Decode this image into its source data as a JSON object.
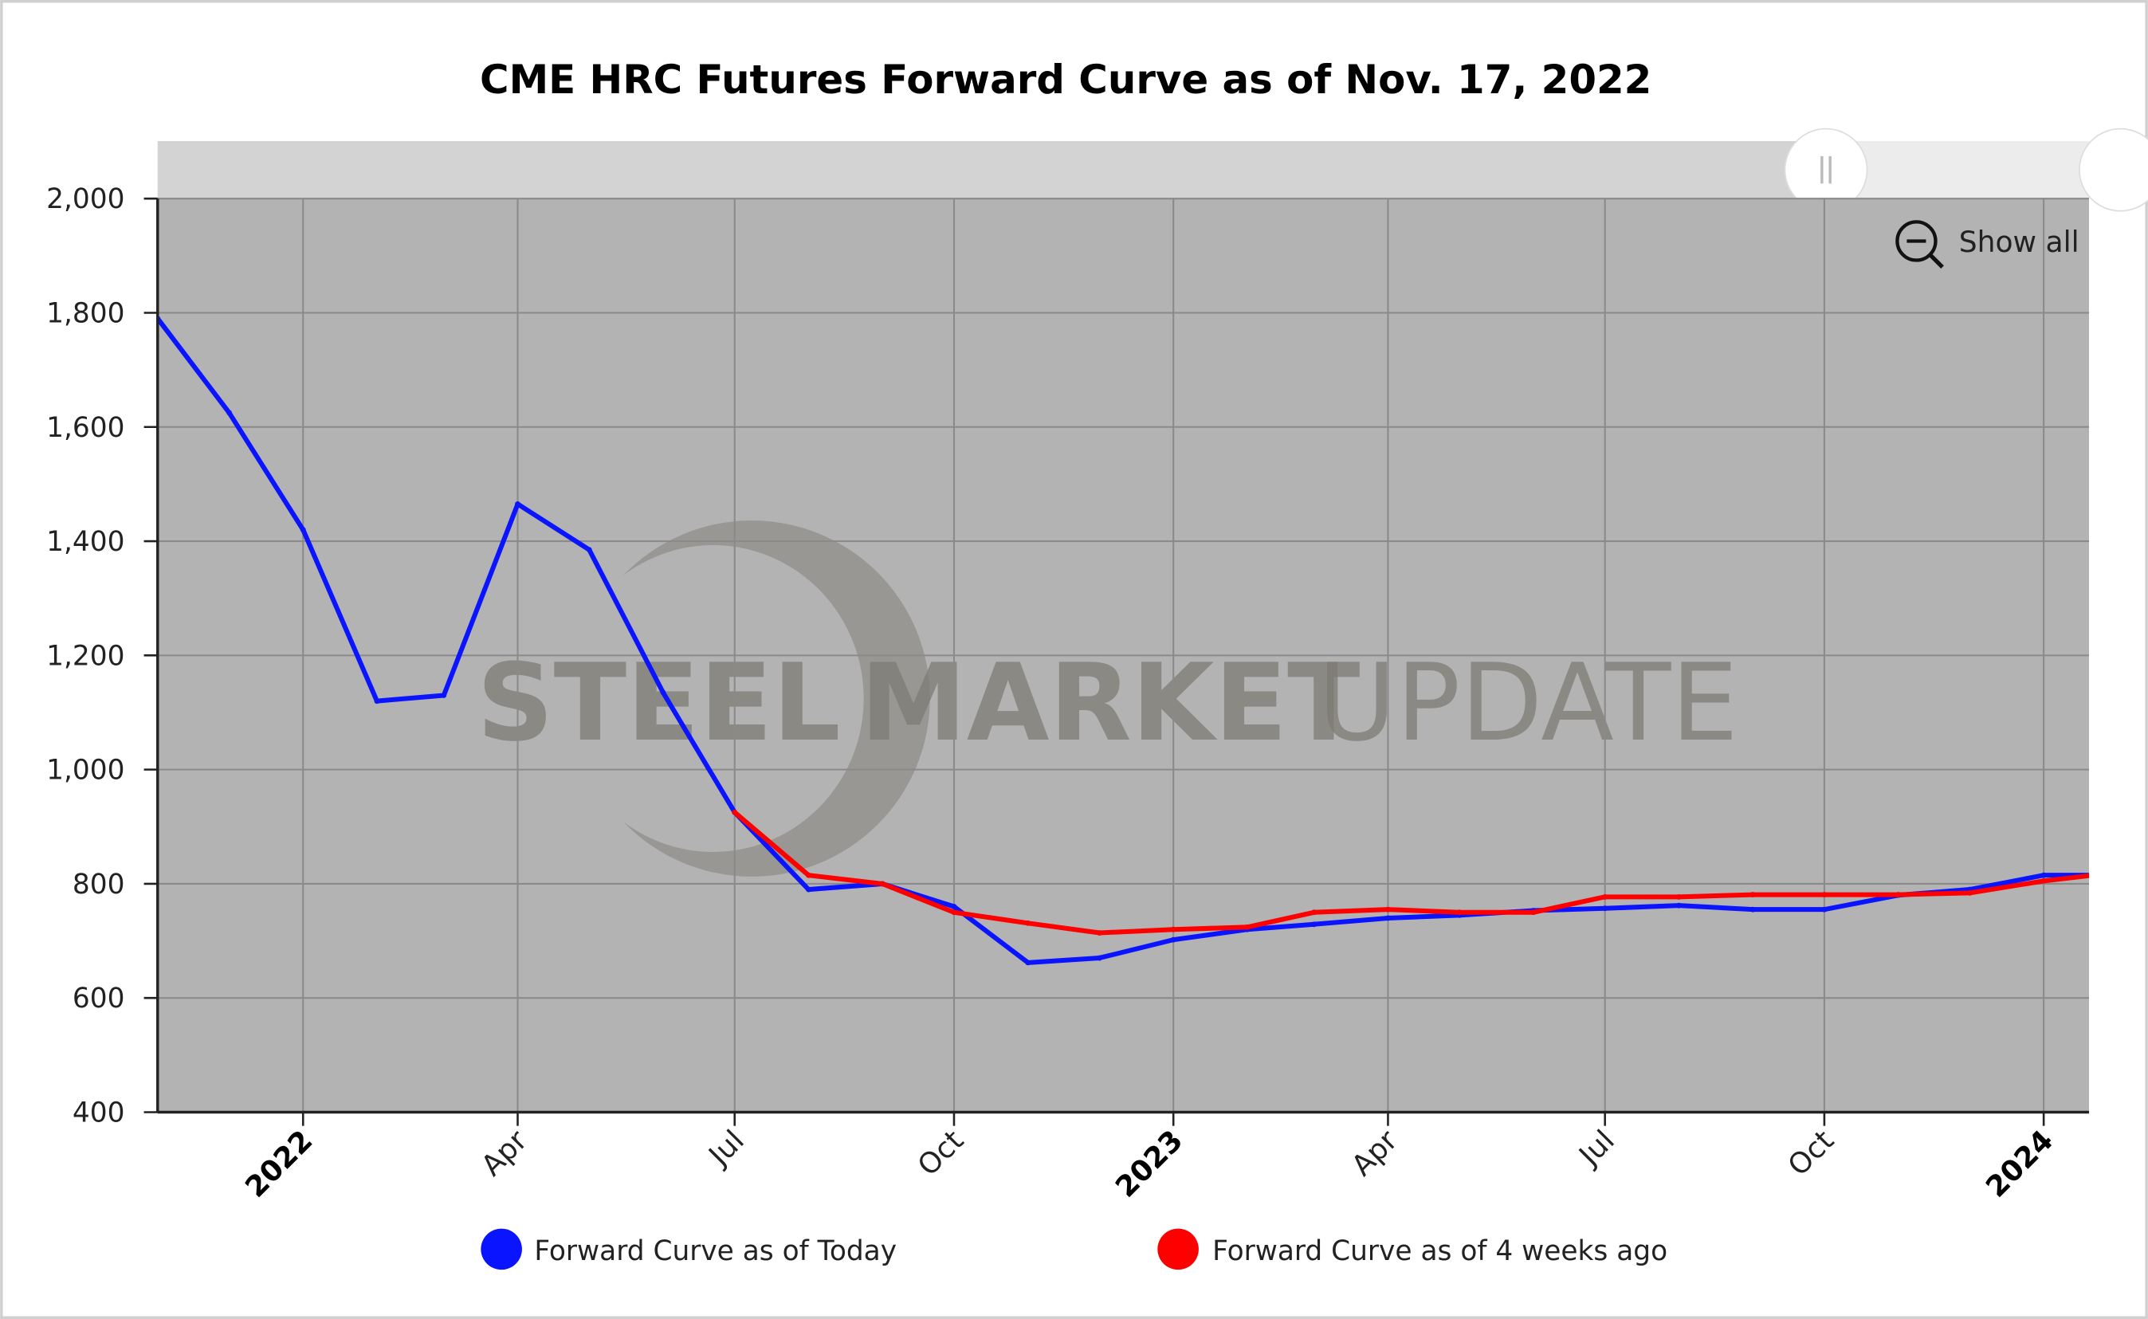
{
  "chart_data": {
    "type": "line",
    "title": "CME HRC Futures Forward Curve as of Nov. 17, 2022",
    "xlabel": "",
    "ylabel": "",
    "ylim": [
      400,
      2000
    ],
    "yticks": [
      "2,000",
      "1,800",
      "1,600",
      "1,400",
      "1,200",
      "1,000",
      "800",
      "600",
      "400"
    ],
    "ytick_values": [
      2000,
      1800,
      1600,
      1400,
      1200,
      1000,
      800,
      600,
      400
    ],
    "xlim": [
      "2021-11",
      "2024-01-20"
    ],
    "xticks": [
      {
        "date": "2022-01",
        "label": "2022",
        "year": true
      },
      {
        "date": "2022-04",
        "label": "Apr",
        "year": false
      },
      {
        "date": "2022-07",
        "label": "Jul",
        "year": false
      },
      {
        "date": "2022-10",
        "label": "Oct",
        "year": false
      },
      {
        "date": "2023-01",
        "label": "2023",
        "year": true
      },
      {
        "date": "2023-04",
        "label": "Apr",
        "year": false
      },
      {
        "date": "2023-07",
        "label": "Jul",
        "year": false
      },
      {
        "date": "2023-10",
        "label": "Oct",
        "year": false
      },
      {
        "date": "2024-01",
        "label": "2024",
        "year": true
      }
    ],
    "grid": true,
    "legend_position": "bottom",
    "series": [
      {
        "name": "Forward Curve as of Today",
        "color": "#0a14ff",
        "x": [
          "2021-11",
          "2021-12",
          "2022-01",
          "2022-02",
          "2022-03",
          "2022-04",
          "2022-05",
          "2022-06",
          "2022-07",
          "2022-08",
          "2022-09",
          "2022-10",
          "2022-11",
          "2022-12",
          "2023-01",
          "2023-02",
          "2023-03",
          "2023-04",
          "2023-05",
          "2023-06",
          "2023-07",
          "2023-08",
          "2023-09",
          "2023-10",
          "2023-11",
          "2023-12",
          "2024-01",
          "2024-02"
        ],
        "values": [
          1790,
          1625,
          1420,
          1120,
          1130,
          1465,
          1385,
          1135,
          925,
          790,
          800,
          760,
          662,
          670,
          702,
          720,
          729,
          740,
          745,
          753,
          757,
          762,
          755,
          755,
          780,
          790,
          815,
          815
        ]
      },
      {
        "name": "Forward Curve as of 4 weeks ago",
        "color": "#ff0000",
        "x": [
          "2022-07",
          "2022-08",
          "2022-09",
          "2022-10",
          "2022-11",
          "2022-12",
          "2023-01",
          "2023-02",
          "2023-03",
          "2023-04",
          "2023-05",
          "2023-06",
          "2023-07",
          "2023-08",
          "2023-09",
          "2023-10",
          "2023-11",
          "2023-12",
          "2024-01",
          "2024-02"
        ],
        "values": [
          925,
          815,
          800,
          750,
          731,
          714,
          720,
          724,
          750,
          755,
          750,
          750,
          777,
          777,
          781,
          781,
          781,
          784,
          805,
          820
        ]
      }
    ]
  },
  "controls": {
    "show_all_label": "Show all",
    "zoom_icon": "zoom-out-icon",
    "scrollbar_handle_icon": "grip-icon"
  },
  "watermark": {
    "word1": "STEEL",
    "word2": "MARKET",
    "word3": "UPDATE"
  },
  "colors": {
    "plot_background": "#b3b3b3",
    "scrollbar_track": "#d3d3d3"
  }
}
